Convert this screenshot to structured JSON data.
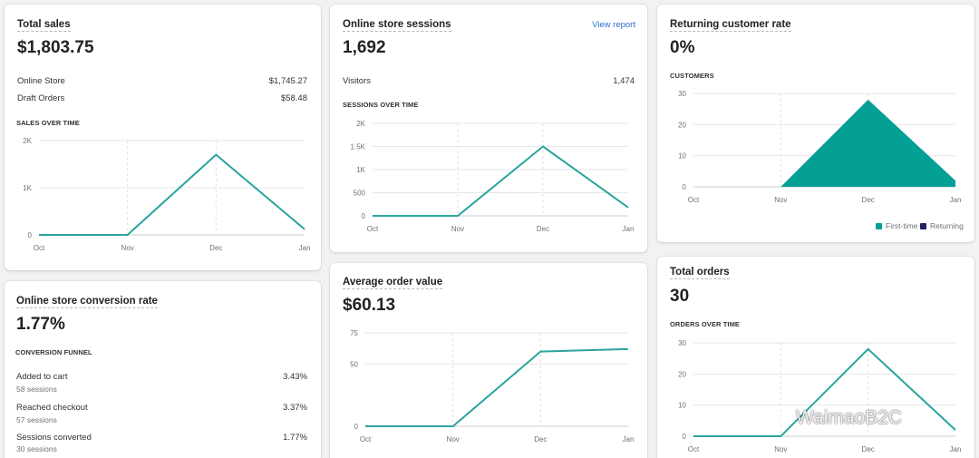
{
  "colors": {
    "teal": "#2aa59d",
    "teal_fill": "#04a096",
    "navy": "#1f2160"
  },
  "total_sales": {
    "title": "Total sales",
    "value": "$1,803.75",
    "rows": [
      {
        "label": "Online Store",
        "value": "$1,745.27"
      },
      {
        "label": "Draft Orders",
        "value": "$58.48"
      }
    ],
    "section": "SALES OVER TIME"
  },
  "sessions": {
    "title": "Online store sessions",
    "link": "View report",
    "value": "1,692",
    "rows": [
      {
        "label": "Visitors",
        "value": "1,474"
      }
    ],
    "section": "SESSIONS OVER TIME"
  },
  "returning": {
    "title": "Returning customer rate",
    "value": "0%",
    "section": "CUSTOMERS",
    "legend": {
      "first": "First-time",
      "returning": "Returning"
    }
  },
  "conversion": {
    "title": "Online store conversion rate",
    "value": "1.77%",
    "section": "CONVERSION FUNNEL",
    "steps": [
      {
        "label": "Added to cart",
        "sub": "58 sessions",
        "value": "3.43%"
      },
      {
        "label": "Reached checkout",
        "sub": "57 sessions",
        "value": "3.37%"
      },
      {
        "label": "Sessions converted",
        "sub": "30 sessions",
        "value": "1.77%"
      }
    ]
  },
  "aov": {
    "title": "Average order value",
    "value": "$60.13"
  },
  "orders": {
    "title": "Total orders",
    "value": "30",
    "section": "ORDERS OVER TIME"
  },
  "watermark": "WaimaoB2C",
  "chart_data": [
    {
      "id": "sales",
      "type": "line",
      "categories": [
        "Oct",
        "Nov",
        "Dec",
        "Jan"
      ],
      "ylim": [
        0,
        2000
      ],
      "yticks": [
        "0",
        "1K",
        "2K"
      ],
      "ytick_values": [
        0,
        1000,
        2000
      ],
      "series": [
        {
          "values": [
            0,
            0,
            1700,
            120
          ]
        }
      ]
    },
    {
      "id": "sessions",
      "type": "line",
      "categories": [
        "Oct",
        "Nov",
        "Dec",
        "Jan"
      ],
      "ylim": [
        0,
        2000
      ],
      "yticks": [
        "0",
        "500",
        "1K",
        "1.5K",
        "2K"
      ],
      "ytick_values": [
        0,
        500,
        1000,
        1500,
        2000
      ],
      "series": [
        {
          "values": [
            0,
            0,
            1500,
            180
          ]
        }
      ]
    },
    {
      "id": "customers",
      "type": "area",
      "categories": [
        "Oct",
        "Nov",
        "Dec",
        "Jan"
      ],
      "ylim": [
        0,
        30
      ],
      "yticks": [
        "0",
        "10",
        "20",
        "30"
      ],
      "ytick_values": [
        0,
        10,
        20,
        30
      ],
      "series": [
        {
          "name": "First-time",
          "values": [
            0,
            0,
            28,
            2
          ]
        },
        {
          "name": "Returning",
          "values": [
            0,
            0,
            0,
            0
          ]
        }
      ]
    },
    {
      "id": "aov",
      "type": "line",
      "categories": [
        "Oct",
        "Nov",
        "Dec",
        "Jan"
      ],
      "ylim": [
        0,
        75
      ],
      "yticks": [
        "0",
        "50",
        "75"
      ],
      "ytick_values": [
        0,
        50,
        75
      ],
      "series": [
        {
          "values": [
            0,
            0,
            60,
            62
          ]
        }
      ]
    },
    {
      "id": "orders",
      "type": "line",
      "categories": [
        "Oct",
        "Nov",
        "Dec",
        "Jan"
      ],
      "ylim": [
        0,
        30
      ],
      "yticks": [
        "0",
        "10",
        "20",
        "30"
      ],
      "ytick_values": [
        0,
        10,
        20,
        30
      ],
      "series": [
        {
          "values": [
            0,
            0,
            28,
            2
          ]
        }
      ]
    }
  ]
}
